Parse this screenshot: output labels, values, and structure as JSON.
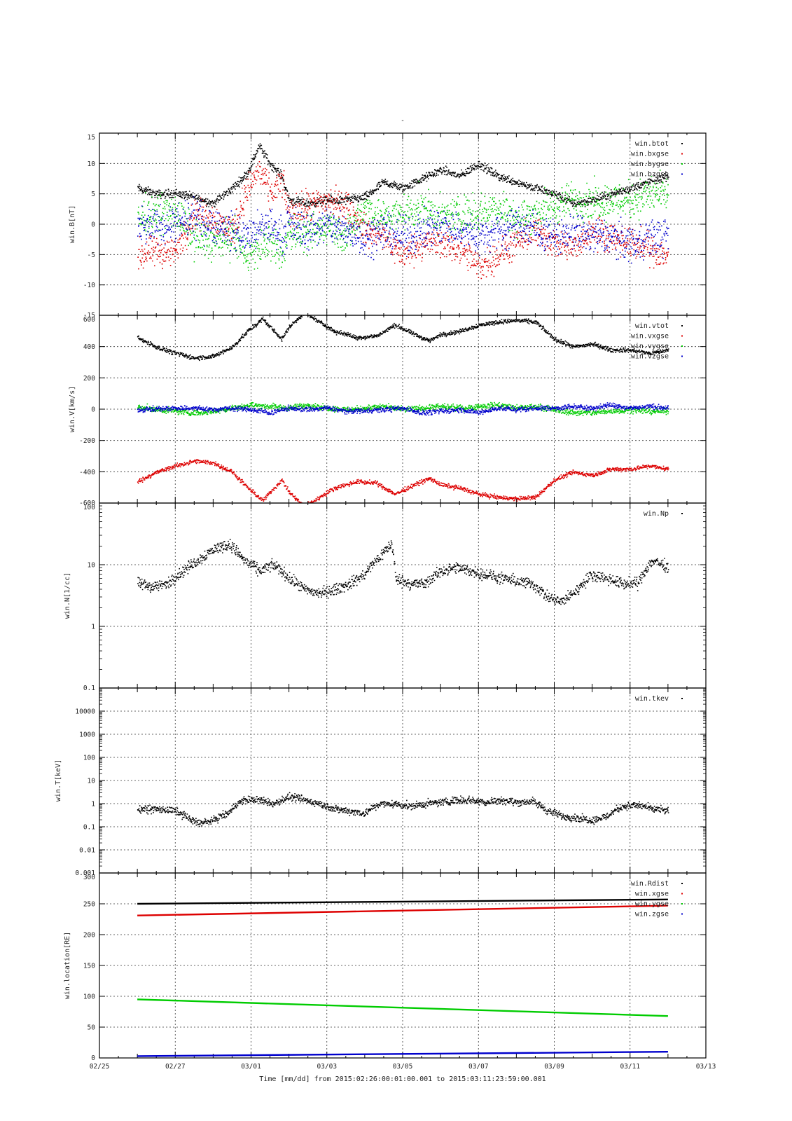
{
  "title": "-",
  "x_axis": {
    "label": "Time [mm/dd]  from 2015:02:26:00:01:00.001  to  2015:03:11:23:59:00.001",
    "range_days": [
      0,
      16
    ],
    "tick_labels": [
      "02/25",
      "02/27",
      "03/01",
      "03/03",
      "03/05",
      "03/07",
      "03/09",
      "03/11",
      "03/13"
    ],
    "data_start_day": 1.0,
    "data_end_day": 15.0
  },
  "colors": {
    "black": "#000000",
    "red": "#dd0000",
    "green": "#00cc00",
    "blue": "#0000cc",
    "grid": "#333333"
  },
  "chart_data": [
    {
      "type": "scatter",
      "ylabel": "win.B[nT]",
      "ylim": [
        -15,
        15
      ],
      "yscale": "linear",
      "yticks": [
        -15,
        -10,
        -5,
        0,
        5,
        10,
        15
      ],
      "ytick_labels": [
        "-15",
        "-10",
        "-5",
        "0",
        "5",
        "10",
        "15"
      ],
      "legend": [
        "win.btot",
        "win.bxgse",
        "win.bygse",
        "win.bzgse"
      ],
      "series": [
        {
          "color": "#000000",
          "x": [
            1.0,
            1.5,
            2.0,
            2.5,
            3.0,
            3.5,
            3.9,
            4.2,
            4.5,
            4.8,
            5.0,
            5.5,
            6.0,
            6.5,
            7.0,
            7.5,
            8.0,
            8.5,
            9.0,
            9.5,
            10.0,
            10.5,
            11.0,
            11.5,
            12.0,
            12.5,
            13.0,
            13.5,
            14.0,
            14.5,
            15.0
          ],
          "y": [
            6,
            5,
            5.2,
            4.5,
            3.5,
            6,
            8.5,
            13,
            10,
            8,
            4,
            3.5,
            4,
            4,
            4.5,
            7,
            6,
            7.5,
            9,
            8,
            10,
            8,
            7,
            6,
            5,
            3.5,
            4,
            5,
            6,
            7,
            8
          ],
          "spread": 0.6
        },
        {
          "color": "#dd0000",
          "x": [
            1.0,
            1.5,
            2.0,
            2.5,
            3.0,
            3.5,
            3.9,
            4.2,
            4.5,
            4.8,
            5.0,
            5.5,
            6.0,
            6.5,
            7.0,
            7.5,
            8.0,
            8.5,
            9.0,
            9.5,
            10.0,
            10.5,
            11.0,
            11.5,
            12.0,
            12.5,
            13.0,
            13.5,
            14.0,
            14.5,
            15.0
          ],
          "y": [
            -5,
            -4.5,
            -4.5,
            2,
            1,
            -1,
            6,
            9,
            5,
            7,
            2,
            3,
            4,
            3,
            -1,
            -2,
            -5,
            -3,
            -3,
            -4,
            -7,
            -5,
            -3,
            -1,
            -3,
            -4,
            -1,
            -2,
            -3,
            -4,
            -5
          ],
          "spread": 2.2
        },
        {
          "color": "#00cc00",
          "x": [
            1.0,
            1.5,
            2.0,
            2.5,
            3.0,
            3.5,
            3.9,
            4.2,
            4.5,
            4.8,
            5.0,
            5.5,
            6.0,
            6.5,
            7.0,
            7.5,
            8.0,
            8.5,
            9.0,
            9.5,
            10.0,
            10.5,
            11.0,
            11.5,
            12.0,
            12.5,
            13.0,
            13.5,
            14.0,
            14.5,
            15.0
          ],
          "y": [
            1,
            2,
            2,
            -2,
            -3,
            -2,
            -5,
            -4,
            -3,
            -5,
            -1,
            -2,
            0,
            -2,
            3,
            1,
            2,
            3,
            1,
            2,
            2,
            3,
            1,
            2,
            3,
            4,
            4,
            4,
            4,
            5,
            5
          ],
          "spread": 2.6
        },
        {
          "color": "#0000cc",
          "x": [
            1.0,
            1.5,
            2.0,
            2.5,
            3.0,
            3.5,
            3.9,
            4.2,
            4.5,
            4.8,
            5.0,
            5.5,
            6.0,
            6.5,
            7.0,
            7.5,
            8.0,
            8.5,
            9.0,
            9.5,
            10.0,
            10.5,
            11.0,
            11.5,
            12.0,
            12.5,
            13.0,
            13.5,
            14.0,
            14.5,
            15.0
          ],
          "y": [
            -1,
            0,
            0,
            1,
            0,
            -1,
            -2,
            -1,
            0,
            -2,
            0,
            -1,
            0,
            -1,
            -2,
            -1,
            -2,
            -1,
            0,
            -1,
            -2,
            -1,
            0,
            -1,
            -2,
            -1,
            -2,
            -2,
            -3,
            -2,
            -2
          ],
          "spread": 2.6
        }
      ]
    },
    {
      "type": "scatter",
      "ylabel": "win.V[km/s]",
      "ylim": [
        -600,
        600
      ],
      "yscale": "linear",
      "yticks": [
        -600,
        -400,
        -200,
        0,
        200,
        400,
        600
      ],
      "ytick_labels": [
        "-600",
        "-400",
        "-200",
        "0",
        "200",
        "400",
        "600"
      ],
      "legend": [
        "win.vtot",
        "win.vxgse",
        "win.vygse",
        "win.vzgse"
      ],
      "series": [
        {
          "color": "#000000",
          "x": [
            1.0,
            1.5,
            2.0,
            2.5,
            3.0,
            3.5,
            3.9,
            4.3,
            4.8,
            5.0,
            5.4,
            5.8,
            6.2,
            6.8,
            7.3,
            7.8,
            8.3,
            8.7,
            9.0,
            9.5,
            10.0,
            10.5,
            11.0,
            11.5,
            12.0,
            12.5,
            13.0,
            13.5,
            14.0,
            14.5,
            15.0
          ],
          "y": [
            460,
            400,
            360,
            330,
            340,
            400,
            500,
            580,
            450,
            530,
            620,
            560,
            500,
            460,
            470,
            540,
            480,
            440,
            480,
            500,
            540,
            560,
            570,
            560,
            450,
            400,
            420,
            380,
            380,
            360,
            380
          ],
          "spread": 12
        },
        {
          "color": "#dd0000",
          "x": [
            1.0,
            1.5,
            2.0,
            2.5,
            3.0,
            3.5,
            3.9,
            4.3,
            4.8,
            5.0,
            5.4,
            5.8,
            6.2,
            6.8,
            7.3,
            7.8,
            8.3,
            8.7,
            9.0,
            9.5,
            10.0,
            10.5,
            11.0,
            11.5,
            12.0,
            12.5,
            13.0,
            13.5,
            14.0,
            14.5,
            15.0
          ],
          "y": [
            -460,
            -400,
            -360,
            -330,
            -340,
            -400,
            -500,
            -580,
            -450,
            -530,
            -620,
            -560,
            -500,
            -460,
            -470,
            -540,
            -480,
            -440,
            -480,
            -500,
            -540,
            -560,
            -570,
            -560,
            -450,
            -400,
            -420,
            -380,
            -380,
            -360,
            -380
          ],
          "spread": 12
        },
        {
          "color": "#00cc00",
          "x": [
            1.0,
            1.5,
            2.0,
            2.5,
            3.0,
            3.5,
            4.0,
            4.5,
            5.0,
            5.5,
            6.0,
            6.5,
            7.0,
            7.5,
            8.0,
            8.5,
            9.0,
            9.5,
            10.0,
            10.5,
            11.0,
            11.5,
            12.0,
            12.5,
            13.0,
            13.5,
            14.0,
            14.5,
            15.0
          ],
          "y": [
            20,
            0,
            -10,
            -20,
            -10,
            10,
            30,
            20,
            10,
            30,
            10,
            0,
            10,
            20,
            0,
            10,
            20,
            10,
            20,
            30,
            10,
            20,
            0,
            -20,
            -20,
            -10,
            0,
            -10,
            -10
          ],
          "spread": 16
        },
        {
          "color": "#0000cc",
          "x": [
            1.0,
            1.5,
            2.0,
            2.5,
            3.0,
            3.5,
            4.0,
            4.5,
            5.0,
            5.5,
            6.0,
            6.5,
            7.0,
            7.5,
            8.0,
            8.5,
            9.0,
            9.5,
            10.0,
            10.5,
            11.0,
            11.5,
            12.0,
            12.5,
            13.0,
            13.5,
            14.0,
            14.5,
            15.0
          ],
          "y": [
            0,
            5,
            10,
            10,
            0,
            10,
            0,
            -20,
            10,
            0,
            10,
            -10,
            -5,
            0,
            10,
            -20,
            -10,
            0,
            -20,
            10,
            0,
            10,
            10,
            20,
            10,
            30,
            10,
            20,
            10
          ],
          "spread": 14
        }
      ]
    },
    {
      "type": "scatter",
      "ylabel": "win.N[1/cc]",
      "ylim": [
        0.1,
        100
      ],
      "yscale": "log",
      "yticks": [
        0.1,
        1,
        10,
        100
      ],
      "ytick_labels": [
        "0.1",
        "1",
        "10",
        "100"
      ],
      "legend": [
        "win.Np"
      ],
      "series": [
        {
          "color": "#000000",
          "x": [
            1.0,
            1.4,
            1.8,
            2.2,
            2.6,
            3.0,
            3.4,
            3.8,
            4.2,
            4.6,
            5.0,
            5.4,
            5.8,
            6.2,
            6.6,
            7.0,
            7.4,
            7.7,
            7.8,
            8.2,
            8.6,
            9.0,
            9.4,
            9.8,
            10.2,
            10.6,
            11.0,
            11.4,
            11.8,
            12.2,
            12.6,
            13.0,
            13.4,
            13.8,
            14.2,
            14.6,
            15.0
          ],
          "y": [
            5,
            4.5,
            5,
            8,
            12,
            18,
            22,
            12,
            8,
            10,
            6,
            4,
            3.5,
            4,
            5,
            7,
            14,
            22,
            6,
            5,
            5,
            8,
            9,
            8,
            7,
            6,
            5.5,
            5,
            3,
            2.5,
            4,
            7,
            6,
            5,
            5,
            12,
            9
          ],
          "spread": 0.08
        }
      ]
    },
    {
      "type": "scatter",
      "ylabel": "win.T[keV]",
      "ylim": [
        0.001,
        100000
      ],
      "yscale": "log",
      "yticks": [
        0.001,
        0.01,
        0.1,
        1,
        10,
        100,
        1000,
        10000
      ],
      "ytick_labels": [
        "0.001",
        "0.01",
        "0.1",
        "1",
        "10",
        "100",
        "1000",
        "10000"
      ],
      "legend": [
        "win.tkev"
      ],
      "series": [
        {
          "color": "#000000",
          "x": [
            1.0,
            1.5,
            2.0,
            2.4,
            2.7,
            3.0,
            3.4,
            3.8,
            4.2,
            4.6,
            5.0,
            5.4,
            5.8,
            6.2,
            6.6,
            7.0,
            7.4,
            7.8,
            8.2,
            8.6,
            9.0,
            9.4,
            9.8,
            10.2,
            10.6,
            11.0,
            11.4,
            11.8,
            12.2,
            12.6,
            13.0,
            13.4,
            13.8,
            14.2,
            14.6,
            15.0
          ],
          "y": [
            0.6,
            0.6,
            0.5,
            0.2,
            0.15,
            0.2,
            0.4,
            1.5,
            1.5,
            1,
            2,
            1.5,
            1,
            0.6,
            0.5,
            0.4,
            1,
            1,
            0.8,
            1,
            1.2,
            1.5,
            1.5,
            1.2,
            1.5,
            1.2,
            1.3,
            0.5,
            0.3,
            0.25,
            0.2,
            0.3,
            0.8,
            0.9,
            0.6,
            0.5
          ],
          "spread": 0.14
        }
      ]
    },
    {
      "type": "line",
      "ylabel": "win.location[RE]",
      "ylim": [
        0,
        300
      ],
      "yscale": "linear",
      "yticks": [
        0,
        50,
        100,
        150,
        200,
        250,
        300
      ],
      "ytick_labels": [
        "0",
        "50",
        "100",
        "150",
        "200",
        "250",
        "300"
      ],
      "legend": [
        "win.Rdist",
        "win.xgse",
        "win.ygse",
        "win.zgse"
      ],
      "series": [
        {
          "color": "#000000",
          "x": [
            1.0,
            15.0
          ],
          "y": [
            250,
            257
          ]
        },
        {
          "color": "#dd0000",
          "x": [
            1.0,
            15.0
          ],
          "y": [
            231,
            247
          ]
        },
        {
          "color": "#00cc00",
          "x": [
            1.0,
            15.0
          ],
          "y": [
            95,
            68
          ]
        },
        {
          "color": "#0000cc",
          "x": [
            1.0,
            15.0
          ],
          "y": [
            3,
            10
          ]
        }
      ]
    }
  ]
}
